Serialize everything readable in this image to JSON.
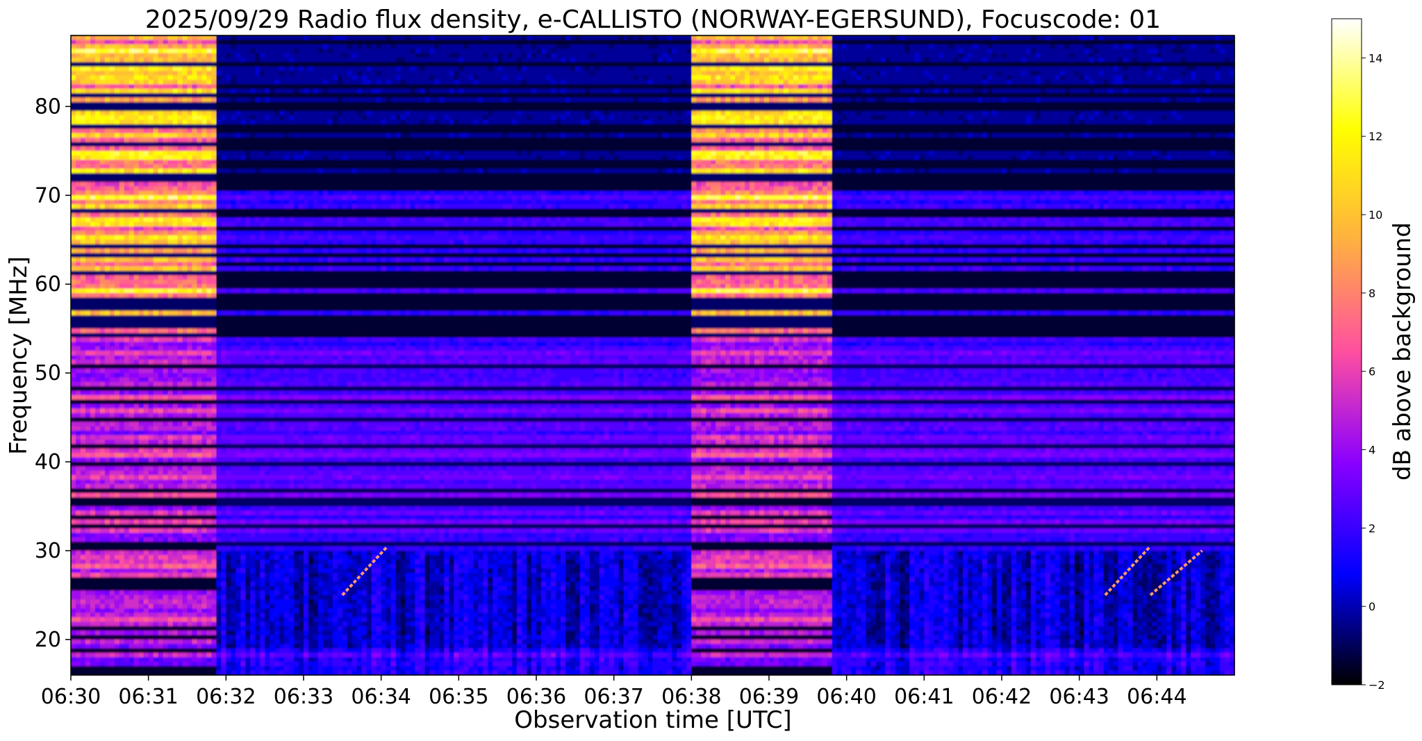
{
  "chart_data": {
    "type": "heatmap",
    "title": "2025/09/29  Radio flux density, e-CALLISTO (NORWAY-EGERSUND), Focuscode: 01",
    "xlabel": "Observation time [UTC]",
    "ylabel": "Frequency [MHz]",
    "colorbar_label": "dB above background",
    "x_ticks": [
      "06:30",
      "06:31",
      "06:32",
      "06:33",
      "06:34",
      "06:35",
      "06:36",
      "06:37",
      "06:38",
      "06:39",
      "06:40",
      "06:41",
      "06:42",
      "06:43",
      "06:44"
    ],
    "x_range": [
      "06:30:00",
      "06:45:00"
    ],
    "y_ticks": [
      20,
      30,
      40,
      50,
      60,
      70,
      80
    ],
    "y_range": [
      16,
      88
    ],
    "colorbar_ticks": [
      -2,
      0,
      2,
      4,
      6,
      8,
      10,
      12,
      14
    ],
    "colorbar_range": [
      -2,
      15
    ],
    "colormap": "gnuplot2",
    "colormap_stops": [
      "#000000",
      "#0000ff",
      "#8a00ff",
      "#ff4fa0",
      "#ffb040",
      "#ffff00",
      "#ffffff"
    ],
    "bright_intervals": [
      {
        "start": "06:30:00",
        "end": "06:31:51"
      },
      {
        "start": "06:38:00",
        "end": "06:39:50"
      }
    ],
    "drifting_bursts": [
      {
        "start": "06:33:30",
        "end": "06:34:05",
        "f_start_mhz": 25,
        "f_end_mhz": 30.5
      },
      {
        "start": "06:43:20",
        "end": "06:43:55",
        "f_start_mhz": 25,
        "f_end_mhz": 30.5
      },
      {
        "start": "06:43:55",
        "end": "06:44:35",
        "f_start_mhz": 25,
        "f_end_mhz": 30
      }
    ]
  }
}
